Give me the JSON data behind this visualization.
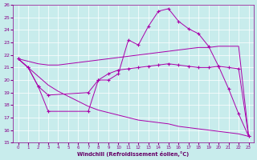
{
  "xlabel": "Windchill (Refroidissement éolien,°C)",
  "bg_color": "#c8ecec",
  "line_color": "#aa00aa",
  "grid_color": "#ffffff",
  "ylim": [
    15,
    26
  ],
  "xlim": [
    -0.5,
    23.5
  ],
  "yticks": [
    15,
    16,
    17,
    18,
    19,
    20,
    21,
    22,
    23,
    24,
    25,
    26
  ],
  "xticks": [
    0,
    1,
    2,
    3,
    4,
    5,
    6,
    7,
    8,
    9,
    10,
    11,
    12,
    13,
    14,
    15,
    16,
    17,
    18,
    19,
    20,
    21,
    22,
    23
  ],
  "curve1_x": [
    0,
    1,
    2,
    3,
    7,
    8,
    9,
    10,
    11,
    12,
    13,
    14,
    15,
    16,
    17,
    18,
    19,
    20,
    21,
    22,
    23
  ],
  "curve1_y": [
    21.7,
    21.0,
    19.5,
    17.5,
    17.5,
    20.0,
    20.0,
    20.5,
    23.2,
    22.8,
    24.3,
    25.5,
    25.7,
    24.7,
    24.1,
    23.7,
    22.7,
    21.1,
    19.3,
    17.3,
    15.5
  ],
  "curve2_x": [
    0,
    1,
    2,
    3,
    7,
    8,
    9,
    10,
    11,
    12,
    13,
    14,
    15,
    16,
    17,
    18,
    19,
    20,
    21,
    22,
    23
  ],
  "curve2_y": [
    21.7,
    21.0,
    19.5,
    18.8,
    19.0,
    20.0,
    20.5,
    20.8,
    20.9,
    21.0,
    21.1,
    21.2,
    21.3,
    21.2,
    21.1,
    21.0,
    21.0,
    21.1,
    21.0,
    20.9,
    15.5
  ],
  "line3_x": [
    0,
    1,
    2,
    3,
    4,
    5,
    6,
    7,
    8,
    9,
    10,
    11,
    12,
    13,
    14,
    15,
    16,
    17,
    18,
    19,
    20,
    21,
    22,
    23
  ],
  "line3_y": [
    21.7,
    21.5,
    21.3,
    21.2,
    21.2,
    21.3,
    21.4,
    21.5,
    21.6,
    21.7,
    21.8,
    21.9,
    22.0,
    22.1,
    22.2,
    22.3,
    22.4,
    22.5,
    22.6,
    22.6,
    22.7,
    22.7,
    22.7,
    15.5
  ],
  "line4_x": [
    0,
    1,
    2,
    3,
    4,
    5,
    6,
    7,
    8,
    9,
    10,
    11,
    12,
    13,
    14,
    15,
    16,
    17,
    18,
    19,
    20,
    21,
    22,
    23
  ],
  "line4_y": [
    21.7,
    21.0,
    20.3,
    19.6,
    19.1,
    18.7,
    18.3,
    17.9,
    17.6,
    17.4,
    17.2,
    17.0,
    16.8,
    16.7,
    16.6,
    16.5,
    16.3,
    16.2,
    16.1,
    16.0,
    15.9,
    15.8,
    15.7,
    15.5
  ]
}
